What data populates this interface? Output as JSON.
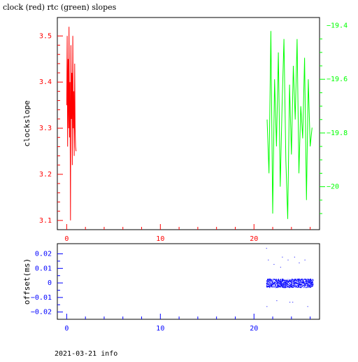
{
  "chart_data": [
    {
      "type": "line",
      "title": "clock (red) rtc (green) slopes",
      "xlabel": "",
      "ylabel": "clockslope",
      "xlim": [
        -1,
        27
      ],
      "ylim": [
        3.08,
        3.54
      ],
      "y2lim": [
        -20.16,
        -19.37
      ],
      "x_ticks": [
        0,
        10,
        20
      ],
      "y_ticks": [
        3.1,
        3.2,
        3.3,
        3.4,
        3.5
      ],
      "y2_ticks": [
        -19.4,
        -19.6,
        -19.8,
        -20
      ],
      "grid": false,
      "series": [
        {
          "color": "#ff0000",
          "axis": "left",
          "x": [
            0.0,
            0.05,
            0.1,
            0.15,
            0.2,
            0.25,
            0.3,
            0.35,
            0.4,
            0.45,
            0.5,
            0.55,
            0.6,
            0.65,
            0.7,
            0.75,
            0.8,
            0.85,
            0.9,
            0.95,
            1.0
          ],
          "y": [
            3.35,
            3.5,
            3.26,
            3.45,
            3.3,
            3.52,
            3.28,
            3.4,
            3.1,
            3.48,
            3.32,
            3.42,
            3.22,
            3.5,
            3.3,
            3.38,
            3.24,
            3.44,
            3.3,
            3.26,
            3.25
          ]
        },
        {
          "color": "#00ff00",
          "axis": "right",
          "x": [
            21.4,
            21.6,
            21.8,
            22.0,
            22.2,
            22.4,
            22.6,
            22.8,
            23.0,
            23.2,
            23.4,
            23.6,
            23.8,
            24.0,
            24.2,
            24.4,
            24.6,
            24.8,
            25.0,
            25.2,
            25.4,
            25.6,
            25.8,
            26.0,
            26.2
          ],
          "y": [
            -19.75,
            -19.95,
            -19.42,
            -20.1,
            -19.6,
            -19.85,
            -19.5,
            -20.0,
            -19.7,
            -19.45,
            -19.9,
            -20.12,
            -19.62,
            -19.88,
            -19.55,
            -19.75,
            -19.45,
            -19.95,
            -19.7,
            -19.82,
            -19.52,
            -20.05,
            -19.6,
            -19.85,
            -19.78
          ]
        }
      ]
    },
    {
      "type": "scatter",
      "xlabel": "",
      "ylabel": "offset(ms)",
      "xlim": [
        -1,
        27
      ],
      "ylim": [
        -0.025,
        0.027
      ],
      "x_ticks": [
        0,
        10,
        20
      ],
      "y_ticks": [
        0.02,
        0.01,
        0,
        -0.01,
        -0.02
      ],
      "y_tick_labels": [
        "0.02",
        "0.01",
        "0",
        "−0.01",
        "−0.02"
      ],
      "grid": false,
      "series": [
        {
          "color": "#0000ff",
          "x_range": [
            21.3,
            26.3
          ],
          "y_center": 0.0,
          "y_spread": 0.003,
          "outliers": [
            [
              21.3,
              0.024
            ],
            [
              21.35,
              -0.016
            ],
            [
              21.5,
              0.016
            ],
            [
              22.1,
              0.013
            ],
            [
              22.4,
              -0.012
            ],
            [
              23.0,
              0.018
            ],
            [
              23.6,
              0.016
            ],
            [
              24.1,
              -0.013
            ],
            [
              24.3,
              0.018
            ],
            [
              25.4,
              0.016
            ],
            [
              25.7,
              -0.016
            ],
            [
              23.8,
              -0.013
            ],
            [
              22.8,
              0.011
            ],
            [
              24.8,
              0.014
            ]
          ]
        }
      ]
    }
  ],
  "footer": "2021-03-21 info"
}
